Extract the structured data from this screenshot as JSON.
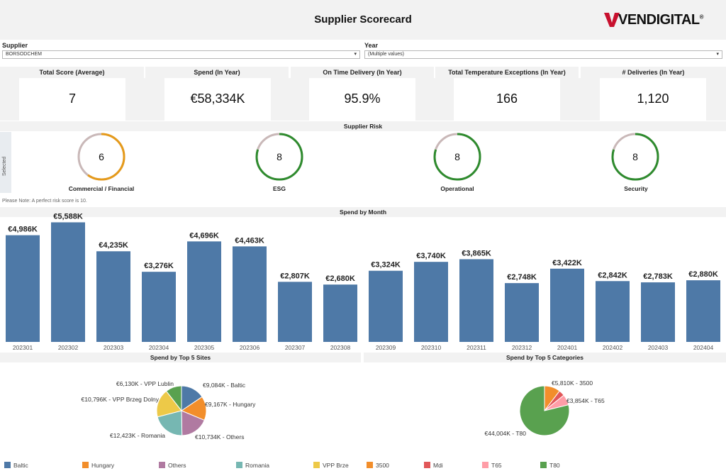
{
  "header": {
    "title": "Supplier Scorecard",
    "logo_text": "VENDIGITAL",
    "logo_mark": "®"
  },
  "filters": {
    "supplier": {
      "label": "Supplier",
      "value": "BORSODCHEM"
    },
    "year": {
      "label": "Year",
      "value": "(Multiple values)"
    }
  },
  "kpis": [
    {
      "label": "Total Score (Average)",
      "value": "7"
    },
    {
      "label": "Spend (In Year)",
      "value": "€58,334K"
    },
    {
      "label": "On Time Delivery (In Year)",
      "value": "95.9%"
    },
    {
      "label": "Total Temperature Exceptions (In Year)",
      "value": "166"
    },
    {
      "label": "# Deliveries (In Year)",
      "value": "1,120"
    }
  ],
  "risk": {
    "title": "Supplier Risk",
    "selected_label": "Selected",
    "note": "Please Note:  A perfect risk score is 10.",
    "items": [
      {
        "label": "Commercial / Financial",
        "score": "6",
        "value": 6,
        "color": "#e59a1a"
      },
      {
        "label": "ESG",
        "score": "8",
        "value": 8,
        "color": "#2e8b2e"
      },
      {
        "label": "Operational",
        "score": "8",
        "value": 8,
        "color": "#2e8b2e"
      },
      {
        "label": "Security",
        "score": "8",
        "value": 8,
        "color": "#2e8b2e"
      }
    ],
    "max": 10
  },
  "spend_by_month": {
    "title": "Spend by Month",
    "chart_data": {
      "type": "bar",
      "categories": [
        "202301",
        "202302",
        "202303",
        "202304",
        "202305",
        "202306",
        "202307",
        "202308",
        "202309",
        "202310",
        "202311",
        "202312",
        "202401",
        "202402",
        "202403",
        "202404"
      ],
      "values": [
        4986,
        5588,
        4235,
        3276,
        4696,
        4463,
        2807,
        2680,
        3324,
        3740,
        3865,
        2748,
        3422,
        2842,
        2783,
        2880
      ],
      "labels": [
        "€4,986K",
        "€5,588K",
        "€4,235K",
        "€3,276K",
        "€4,696K",
        "€4,463K",
        "€2,807K",
        "€2,680K",
        "€3,324K",
        "€3,740K",
        "€3,865K",
        "€2,748K",
        "€3,422K",
        "€2,842K",
        "€2,783K",
        "€2,880K"
      ],
      "color": "#4e79a7"
    }
  },
  "spend_by_sites": {
    "title": "Spend by Top 5 Sites",
    "chart_data": {
      "type": "pie",
      "slices": [
        {
          "name": "Baltic",
          "value": 9084,
          "label": "€9,084K - Baltic",
          "color": "#4e79a7"
        },
        {
          "name": "Hungary",
          "value": 9167,
          "label": "€9,167K - Hungary",
          "color": "#f28e2b"
        },
        {
          "name": "Others",
          "value": 10734,
          "label": "€10,734K - Others",
          "color": "#b07aa1"
        },
        {
          "name": "Romania",
          "value": 12423,
          "label": "€12,423K - Romania",
          "color": "#76b7b2"
        },
        {
          "name": "VPP Brzeg Dolny",
          "value": 10796,
          "label": "€10,796K - VPP Brzeg Dolny",
          "color": "#edc948"
        },
        {
          "name": "VPP Lublin",
          "value": 6130,
          "label": "€6,130K - VPP Lublin",
          "color": "#59a14f"
        }
      ]
    }
  },
  "spend_by_categories": {
    "title": "Spend by Top 5 Categories",
    "chart_data": {
      "type": "pie",
      "slices": [
        {
          "name": "3500",
          "value": 5810,
          "label": "€5,810K - 3500",
          "color": "#f28e2b"
        },
        {
          "name": "Mdi",
          "value": 2150,
          "label": "",
          "color": "#e15759"
        },
        {
          "name": "T65",
          "value": 3854,
          "label": "€3,854K - T65",
          "color": "#ff9da7"
        },
        {
          "name": "T80",
          "value": 44004,
          "label": "€44,004K - T80",
          "color": "#59a14f"
        }
      ]
    }
  },
  "legend": [
    {
      "label": "Baltic",
      "color": "#4e79a7"
    },
    {
      "label": "Hungary",
      "color": "#f28e2b"
    },
    {
      "label": "Others",
      "color": "#b07aa1"
    },
    {
      "label": "Romania",
      "color": "#76b7b2"
    },
    {
      "label": "VPP Brze",
      "color": "#edc948"
    },
    {
      "label": "3500",
      "color": "#f28e2b"
    },
    {
      "label": "Mdi",
      "color": "#e15759"
    },
    {
      "label": "T65",
      "color": "#ff9da7"
    },
    {
      "label": "T80",
      "color": "#59a14f"
    }
  ]
}
